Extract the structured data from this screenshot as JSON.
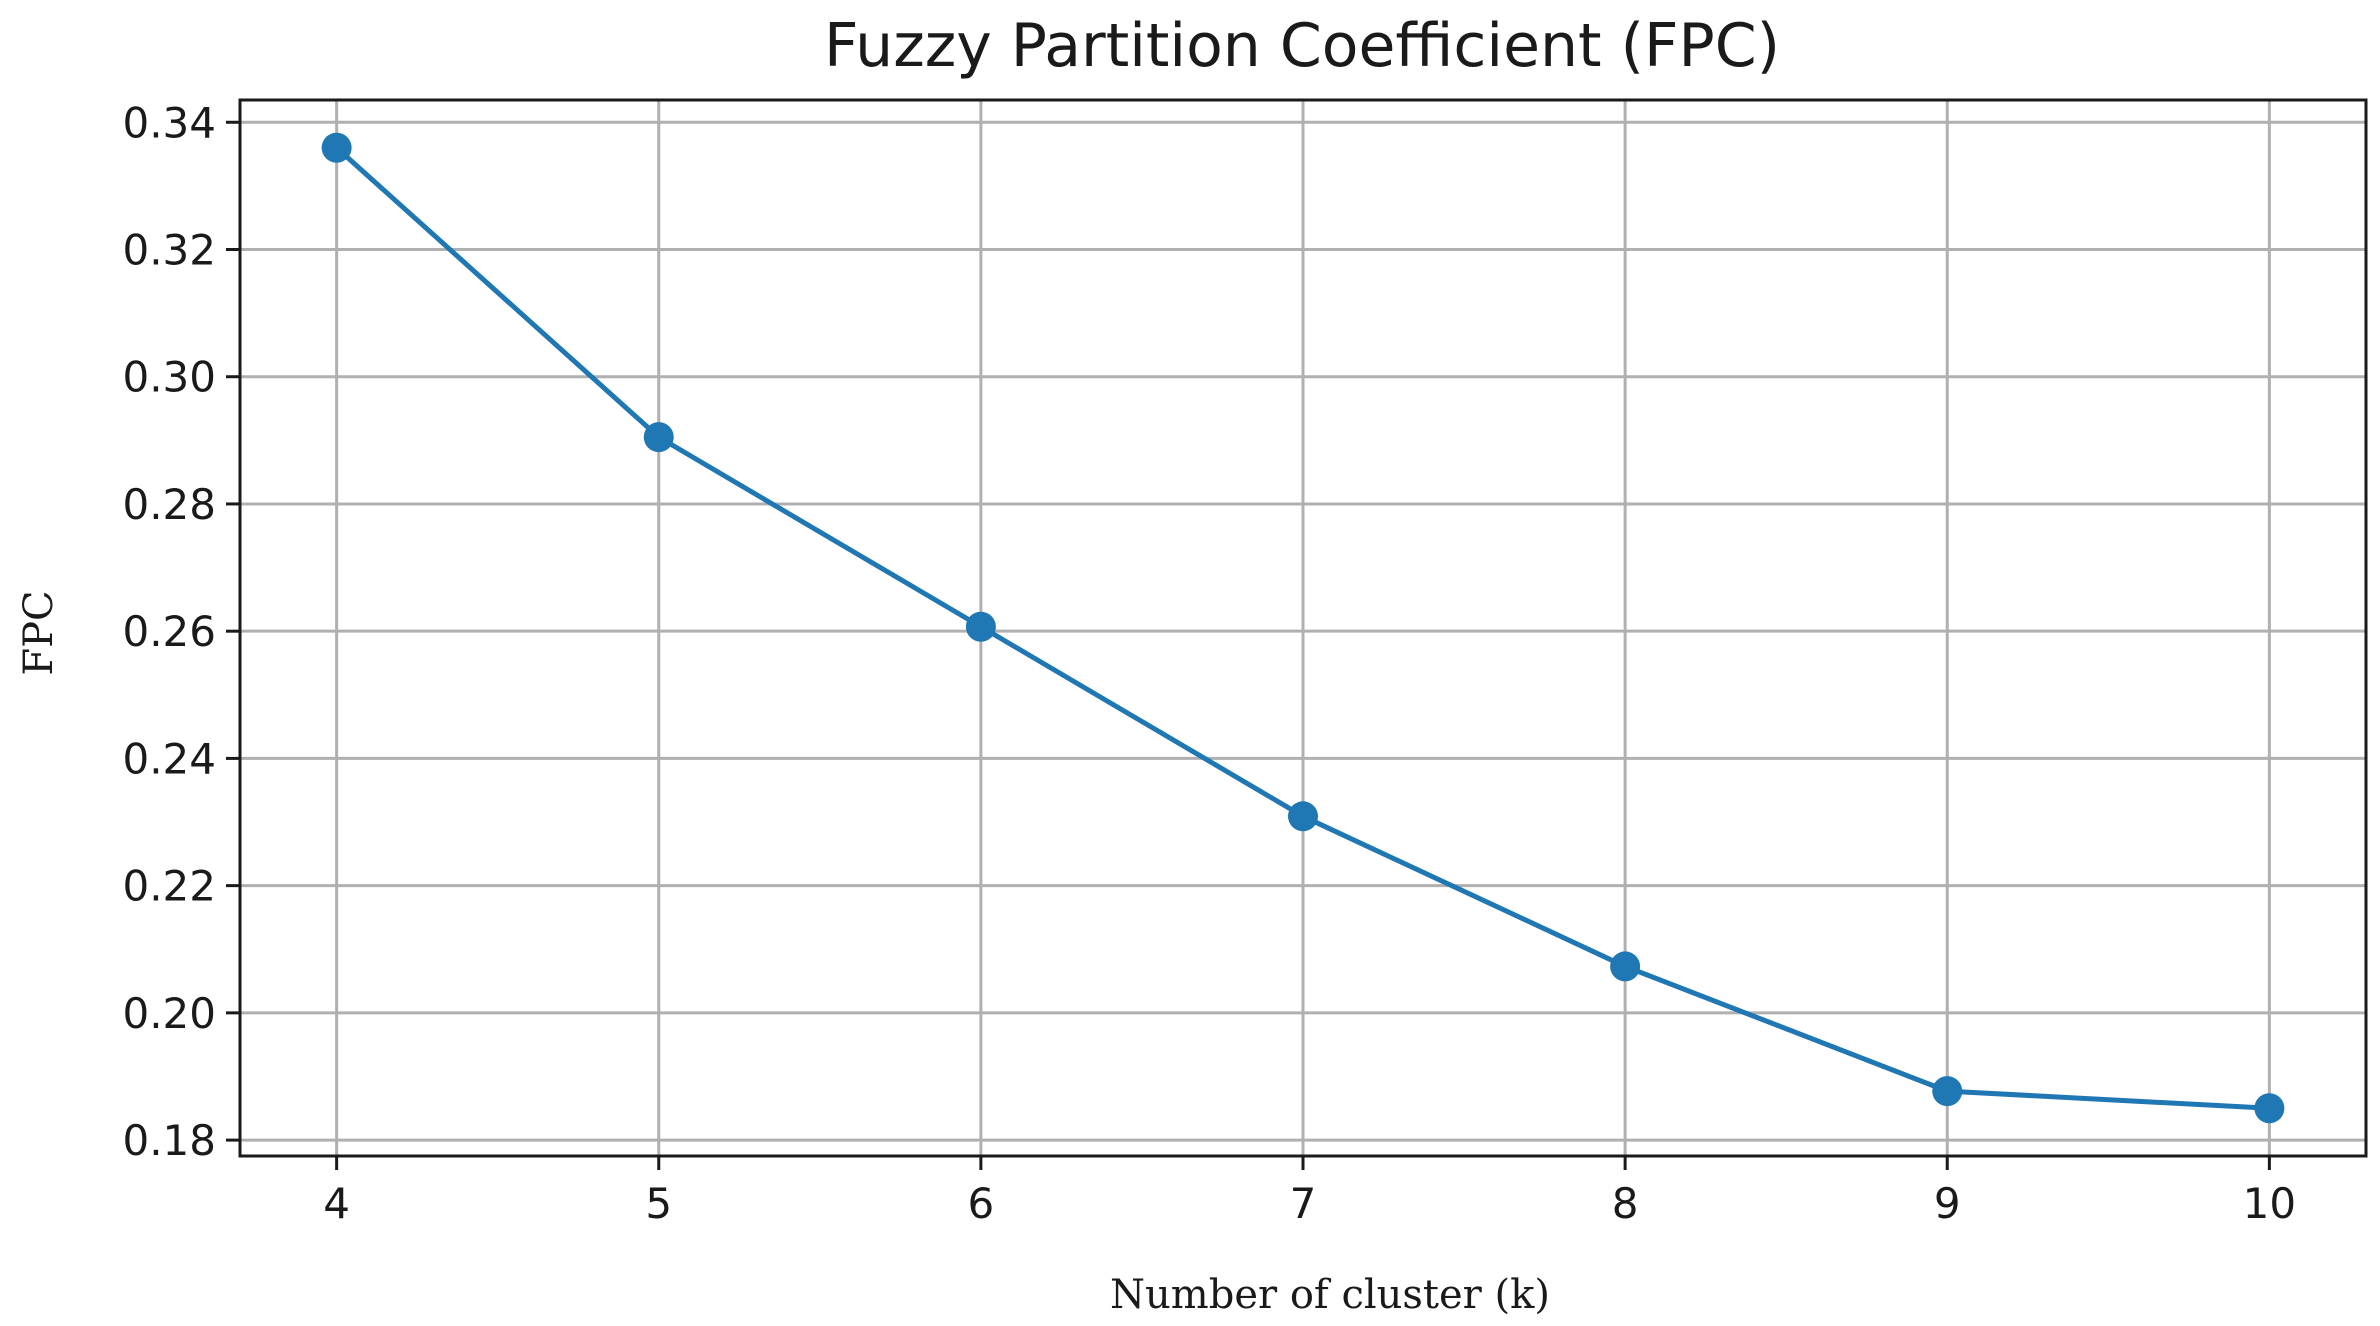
{
  "chart_data": {
    "type": "line",
    "title": "Fuzzy Partition Coefficient (FPC)",
    "xlabel": "Number of cluster (k)",
    "ylabel": "FPC",
    "x": [
      4,
      5,
      6,
      7,
      8,
      9,
      10
    ],
    "series": [
      {
        "values": [
          0.336,
          0.2905,
          0.2607,
          0.2309,
          0.2073,
          0.1877,
          0.185
        ],
        "color": "#1f77b4",
        "marker": "circle"
      }
    ],
    "x_ticks": [
      "4",
      "5",
      "6",
      "7",
      "8",
      "9",
      "10"
    ],
    "y_ticks": [
      "0.18",
      "0.20",
      "0.22",
      "0.24",
      "0.26",
      "0.28",
      "0.30",
      "0.32",
      "0.34"
    ],
    "xlim": [
      3.7,
      10.3
    ],
    "ylim": [
      0.1775,
      0.3435
    ],
    "grid": true,
    "legend": "none"
  }
}
